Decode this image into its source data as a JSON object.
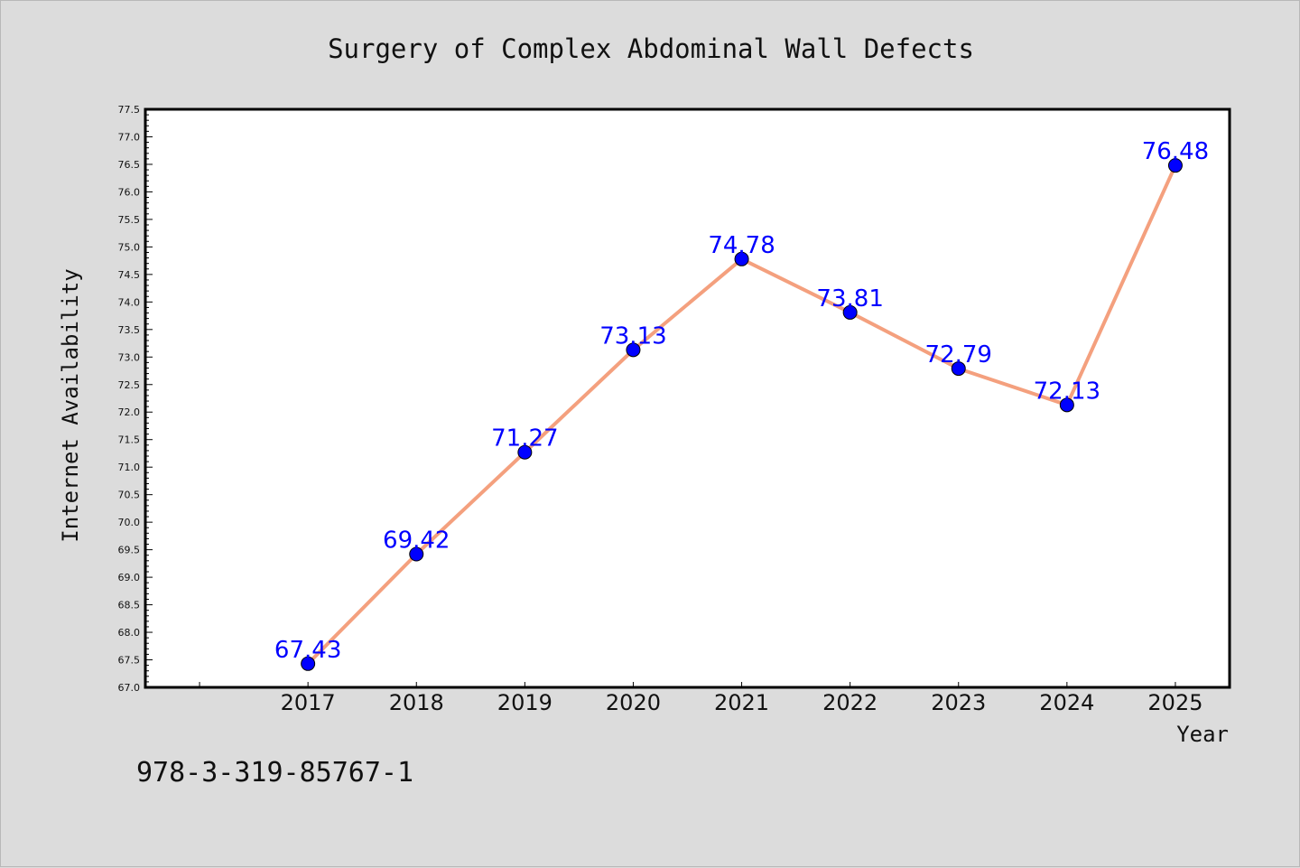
{
  "chart_data": {
    "type": "line",
    "title": "Surgery of Complex Abdominal Wall Defects",
    "xlabel": "Year",
    "ylabel": "Internet Availability",
    "categories": [
      "2017",
      "2018",
      "2019",
      "2020",
      "2021",
      "2022",
      "2023",
      "2024",
      "2025"
    ],
    "values": [
      67.43,
      69.42,
      71.27,
      73.13,
      74.78,
      73.81,
      72.79,
      72.13,
      76.48
    ],
    "data_labels": [
      "67.43",
      "69.42",
      "71.27",
      "73.13",
      "74.78",
      "73.81",
      "72.79",
      "72.13",
      "76.48"
    ],
    "ylim": [
      67.0,
      77.5
    ],
    "y_ticks": [
      "67.0",
      "67.5",
      "68.0",
      "68.5",
      "69.0",
      "69.5",
      "70.0",
      "70.5",
      "71.0",
      "71.5",
      "72.0",
      "72.5",
      "73.0",
      "73.5",
      "74.0",
      "74.5",
      "75.0",
      "75.5",
      "76.0",
      "76.5",
      "77.0",
      "77.5"
    ],
    "grid": false,
    "line_color": "#f4a07e",
    "marker_color": "#0000ff",
    "label_color": "#0000ff"
  },
  "footer": {
    "isbn": "978-3-319-85767-1"
  }
}
